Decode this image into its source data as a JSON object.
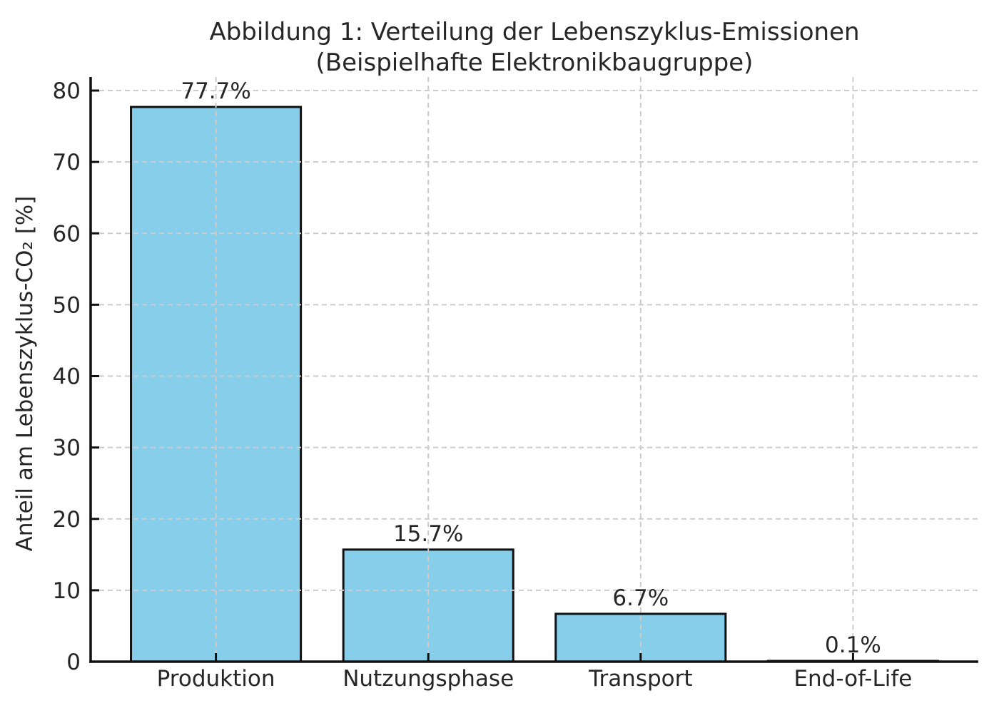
{
  "page": {
    "background": "#ffffff"
  },
  "chart_data": {
    "type": "bar",
    "title_lines": [
      "Abbildung 1: Verteilung der Lebenszyklus-Emissionen",
      "(Beispielhafte Elektronikbaugruppe)"
    ],
    "categories": [
      "Produktion",
      "Nutzungsphase",
      "Transport",
      "End-of-Life"
    ],
    "values": [
      77.7,
      15.7,
      6.7,
      0.1
    ],
    "value_labels": [
      "77.7%",
      "15.7%",
      "6.7%",
      "0.1%"
    ],
    "xlabel": "",
    "ylabel": "Anteil am Lebenszyklus-CO₂ [%]",
    "ylim": [
      0,
      80
    ],
    "yticks": [
      0,
      10,
      20,
      30,
      40,
      50,
      60,
      70,
      80
    ],
    "ytick_labels": [
      "0",
      "10",
      "20",
      "30",
      "40",
      "50",
      "60",
      "70",
      "80"
    ],
    "grid": true,
    "grid_style": "dashed",
    "legend": null,
    "colors": {
      "bar_fill": "#87CEEB",
      "bar_edge": "#111111",
      "grid": "#cccccc",
      "axis": "#111111",
      "text": "#262626",
      "background": "#ffffff"
    }
  }
}
